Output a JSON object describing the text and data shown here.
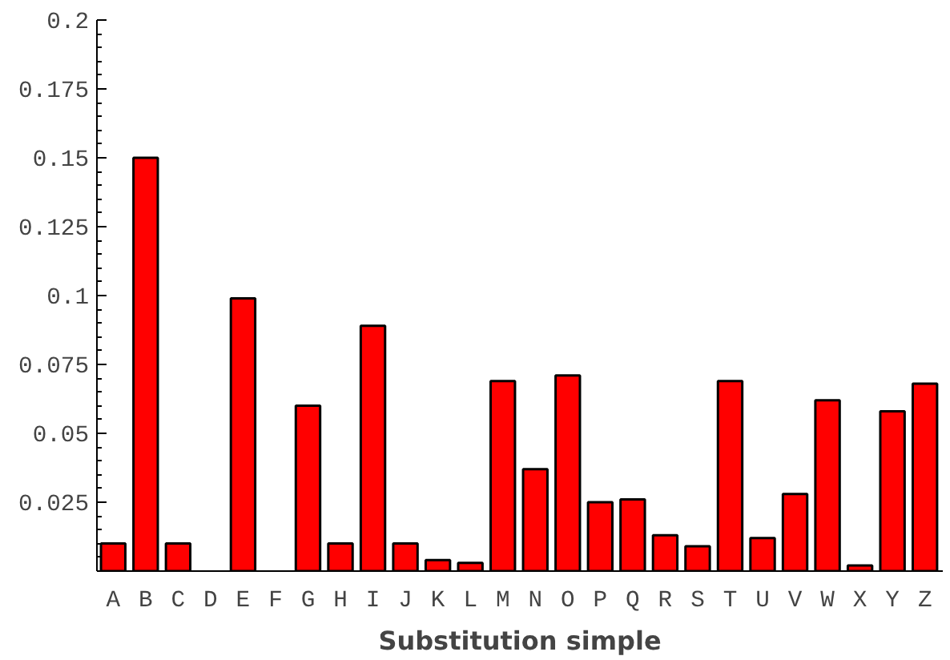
{
  "chart_data": {
    "type": "bar",
    "xlabel": "Substitution simple",
    "categories": [
      "A",
      "B",
      "C",
      "D",
      "E",
      "F",
      "G",
      "H",
      "I",
      "J",
      "K",
      "L",
      "M",
      "N",
      "O",
      "P",
      "Q",
      "R",
      "S",
      "T",
      "U",
      "V",
      "W",
      "X",
      "Y",
      "Z"
    ],
    "values": [
      0.01,
      0.15,
      0.01,
      null,
      0.099,
      null,
      0.06,
      0.01,
      0.089,
      0.01,
      0.004,
      0.003,
      0.069,
      0.037,
      0.071,
      0.025,
      0.026,
      0.013,
      0.009,
      0.069,
      0.012,
      0.028,
      0.062,
      0.002,
      0.058,
      0.068
    ],
    "color": "#ff0000",
    "ylim": [
      0,
      0.2
    ],
    "yticks": [
      0.025,
      0.05,
      0.075,
      0.1,
      0.125,
      0.15,
      0.175,
      0.2
    ],
    "grid": false
  }
}
